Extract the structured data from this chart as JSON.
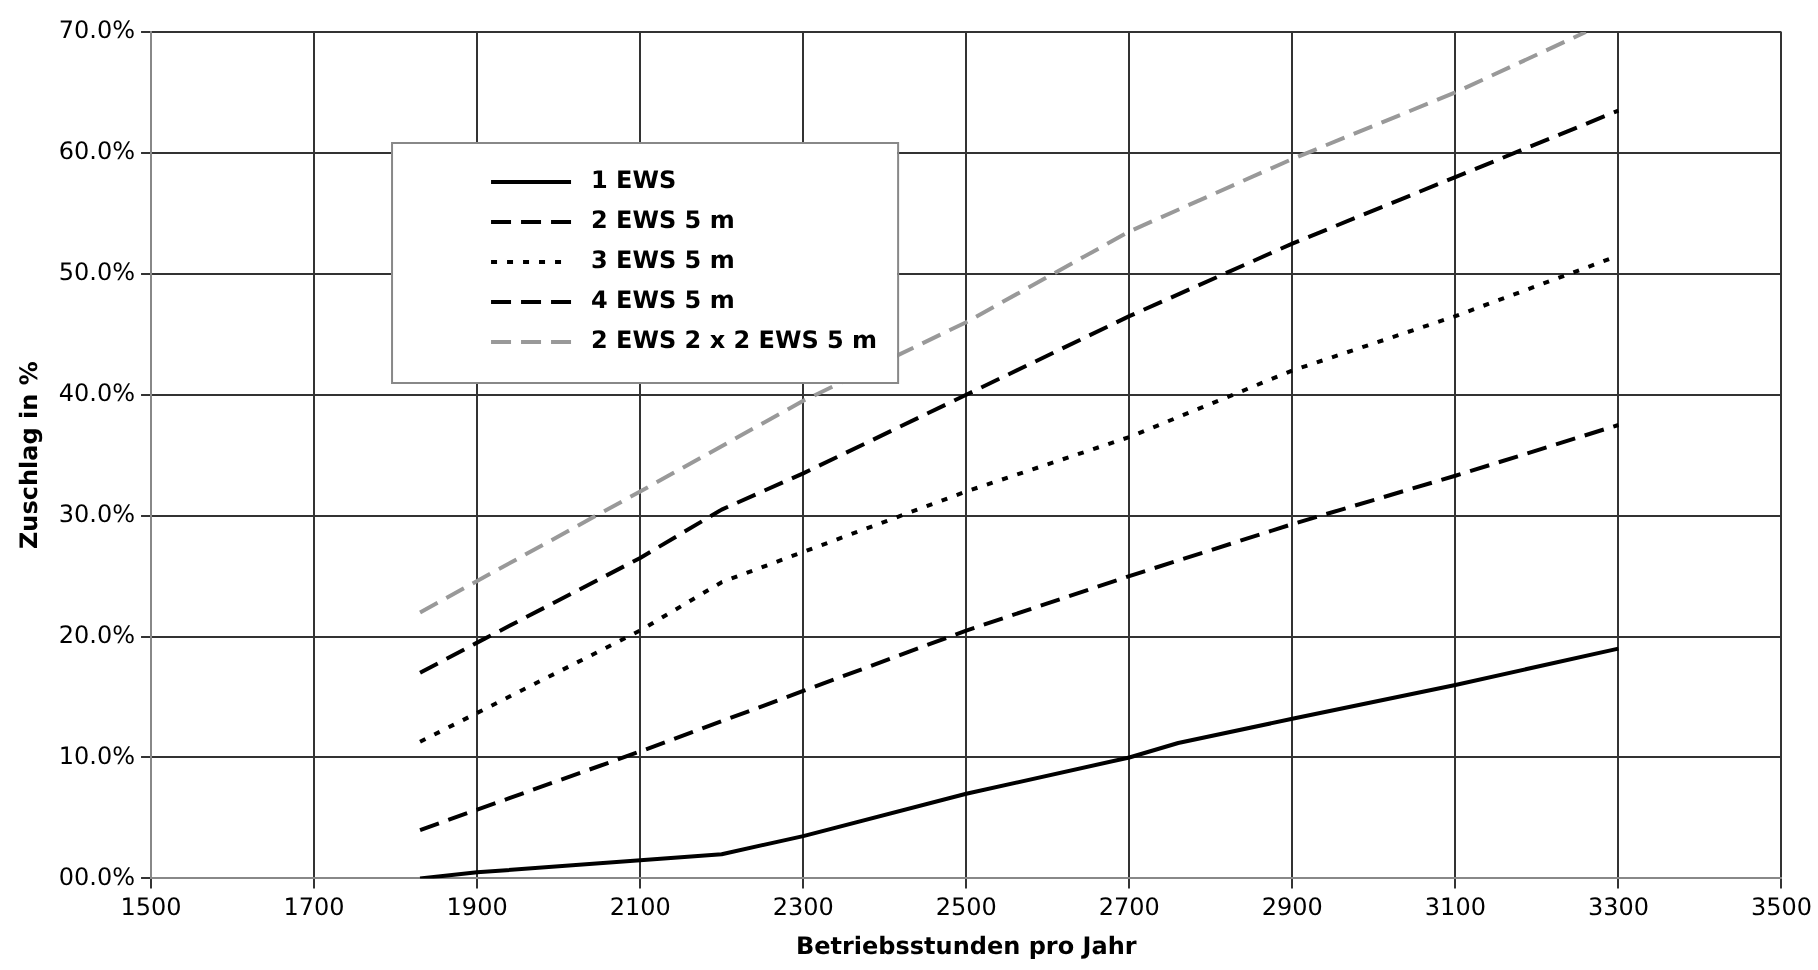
{
  "chart_data": {
    "type": "line",
    "xlabel": "Betriebsstunden pro Jahr",
    "ylabel": "Zuschlag in %",
    "xlim": [
      1500,
      3500
    ],
    "xticks": [
      1500,
      1700,
      1900,
      2100,
      2300,
      2500,
      2700,
      2900,
      3100,
      3300,
      3500
    ],
    "ylim": [
      0,
      70
    ],
    "yticks": [
      {
        "value": 0,
        "label": "00.0%"
      },
      {
        "value": 10,
        "label": "10.0%"
      },
      {
        "value": 20,
        "label": "20.0%"
      },
      {
        "value": 30,
        "label": "30.0%"
      },
      {
        "value": 40,
        "label": "40.0%"
      },
      {
        "value": 50,
        "label": "50.0%"
      },
      {
        "value": 60,
        "label": "60.0%"
      },
      {
        "value": 70,
        "label": "70.0%"
      }
    ],
    "grid": true,
    "legend": "top left",
    "marker": "none",
    "series": [
      {
        "name": "1 EWS",
        "color": "#000000",
        "line_style": "solid",
        "x": [
          1830,
          1900,
          2200,
          2300,
          2500,
          2700,
          2760,
          2900,
          3100,
          3300
        ],
        "values": [
          0,
          0.5,
          2,
          3.5,
          7,
          10,
          11.2,
          13.2,
          16,
          19
        ]
      },
      {
        "name": "2 EWS 5 m",
        "color": "#000000",
        "line_style": "dashed",
        "x": [
          1830,
          2100,
          2300,
          2500,
          2700,
          2900,
          3100,
          3300
        ],
        "values": [
          4,
          10.5,
          15.5,
          20.5,
          25,
          29.3,
          33.3,
          37.5
        ]
      },
      {
        "name": "3 EWS 5 m",
        "color": "#000000",
        "line_style": "dotted",
        "x": [
          1830,
          2100,
          2200,
          2300,
          2500,
          2700,
          2900,
          3100,
          3300
        ],
        "values": [
          11.3,
          20.5,
          24.5,
          27,
          32,
          36.5,
          42,
          46.5,
          51.5
        ]
      },
      {
        "name": "4 EWS 5 m",
        "color": "#000000",
        "line_style": "dashed",
        "x": [
          1830,
          1900,
          2100,
          2200,
          2300,
          2500,
          2700,
          2900,
          3100,
          3300
        ],
        "values": [
          17,
          19.5,
          26.5,
          30.5,
          33.5,
          40,
          46.5,
          52.5,
          58,
          63.5
        ]
      },
      {
        "name": "2 EWS 2 x 2 EWS 5 m",
        "color": "#999999",
        "line_style": "dashed",
        "x": [
          1830,
          2100,
          2300,
          2500,
          2700,
          2900,
          3100,
          3260
        ],
        "values": [
          22,
          32,
          39.5,
          46,
          53.5,
          59.5,
          65,
          70
        ]
      }
    ]
  }
}
